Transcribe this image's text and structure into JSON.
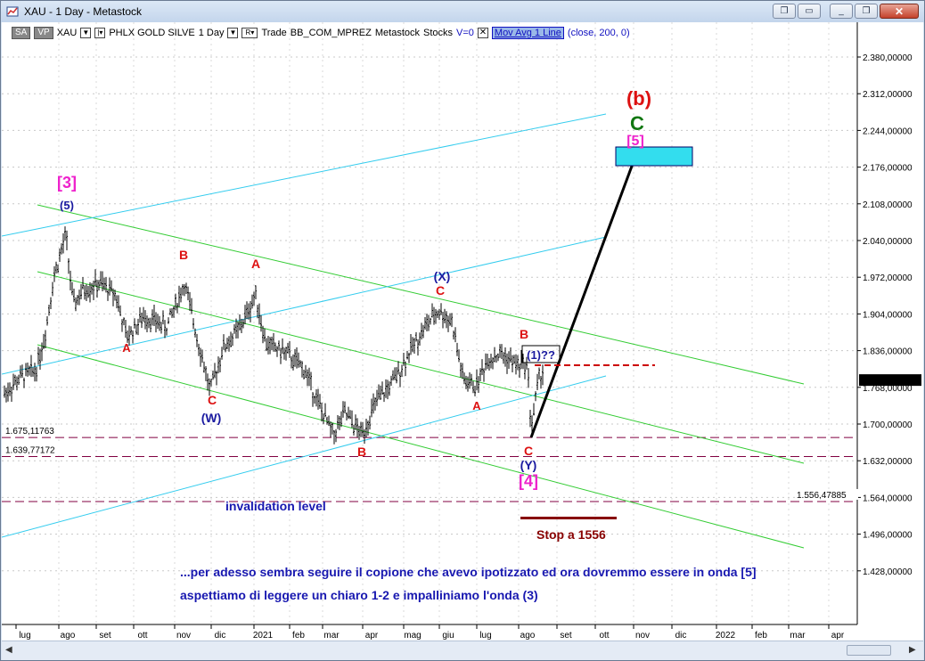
{
  "window": {
    "title": "XAU - 1 Day - Metastock",
    "app_icon": "chart-icon",
    "minimize_label": "_",
    "restore_label": "❐",
    "close_label": "✕"
  },
  "toolbar": {
    "sa": "SA",
    "vp": "VP",
    "symbol": "XAU",
    "security_name": "PHLX GOLD SILVE",
    "period": "1 Day",
    "r_label": "R",
    "trade": "Trade",
    "template": "BB_COM_MPREZ",
    "source": "Metastock",
    "stocks": "Stocks",
    "v_label": "V=0",
    "indicator": "Mov Avg 1 Line",
    "params": "(close,  200,  0)"
  },
  "price_axis": {
    "labels": [
      "2.380,00000",
      "2.312,00000",
      "2.244,00000",
      "2.176,00000",
      "2.108,00000",
      "2.040,00000",
      "1.972,00000",
      "1.904,00000",
      "1.836,00000",
      "1.768,00000",
      "1.700,00000",
      "1.632,00000",
      "1.564,00000",
      "1.496,00000",
      "1.428,00000"
    ],
    "values": [
      2380,
      2312,
      2244,
      2176,
      2108,
      2040,
      1972,
      1904,
      1836,
      1768,
      1700,
      1632,
      1564,
      1496,
      1428
    ],
    "current_price": "1.780,66003",
    "current_value": 1780.66
  },
  "time_axis": {
    "labels": [
      "lug",
      "ago",
      "set",
      "ott",
      "nov",
      "dic",
      "2021",
      "feb",
      "mar",
      "apr",
      "mag",
      "giu",
      "lug",
      "ago",
      "set",
      "ott",
      "nov",
      "dic",
      "2022",
      "feb",
      "mar",
      "apr"
    ]
  },
  "levels": [
    {
      "label": "1.675,11763",
      "value": 1675.12
    },
    {
      "label": "1.639,77172",
      "value": 1639.77
    },
    {
      "label": "1.556,47885",
      "value": 1556.48
    }
  ],
  "wave_labels": {
    "w3": "[3]",
    "w5": "(5)",
    "wB1": "B",
    "wA1": "A",
    "wA2": "A",
    "wC1": "C",
    "wW": "(W)",
    "wB2": "B",
    "wX": "(X)",
    "wC2": "C",
    "wA3": "A",
    "wB3": "B",
    "w1q": "(1)??",
    "wC3": "C",
    "wY": "(Y)",
    "w4": "[4]",
    "wb": "(b)",
    "wc": "C",
    "w5b": "[5]"
  },
  "annotations": {
    "invalidation": "invalidation level",
    "stop": "Stop a 1556",
    "comment1": "...per adesso sembra seguire il copione che avevo ipotizzato ed ora dovremmo essere in onda [5]",
    "comment2": "aspettiamo di leggere un chiaro 1-2 e impalliniamo l'onda (3)"
  },
  "colors": {
    "channel_green": "#33cc33",
    "channel_cyan": "#33ccee",
    "levels": "#800040",
    "wave_red": "#dd1111",
    "wave_blue": "#1a1aa0",
    "wave_magenta": "#ee22cc",
    "wave_green": "#117711",
    "target_box": "#33ddee",
    "text_blue": "#1818b0",
    "stop_red": "#880000"
  }
}
